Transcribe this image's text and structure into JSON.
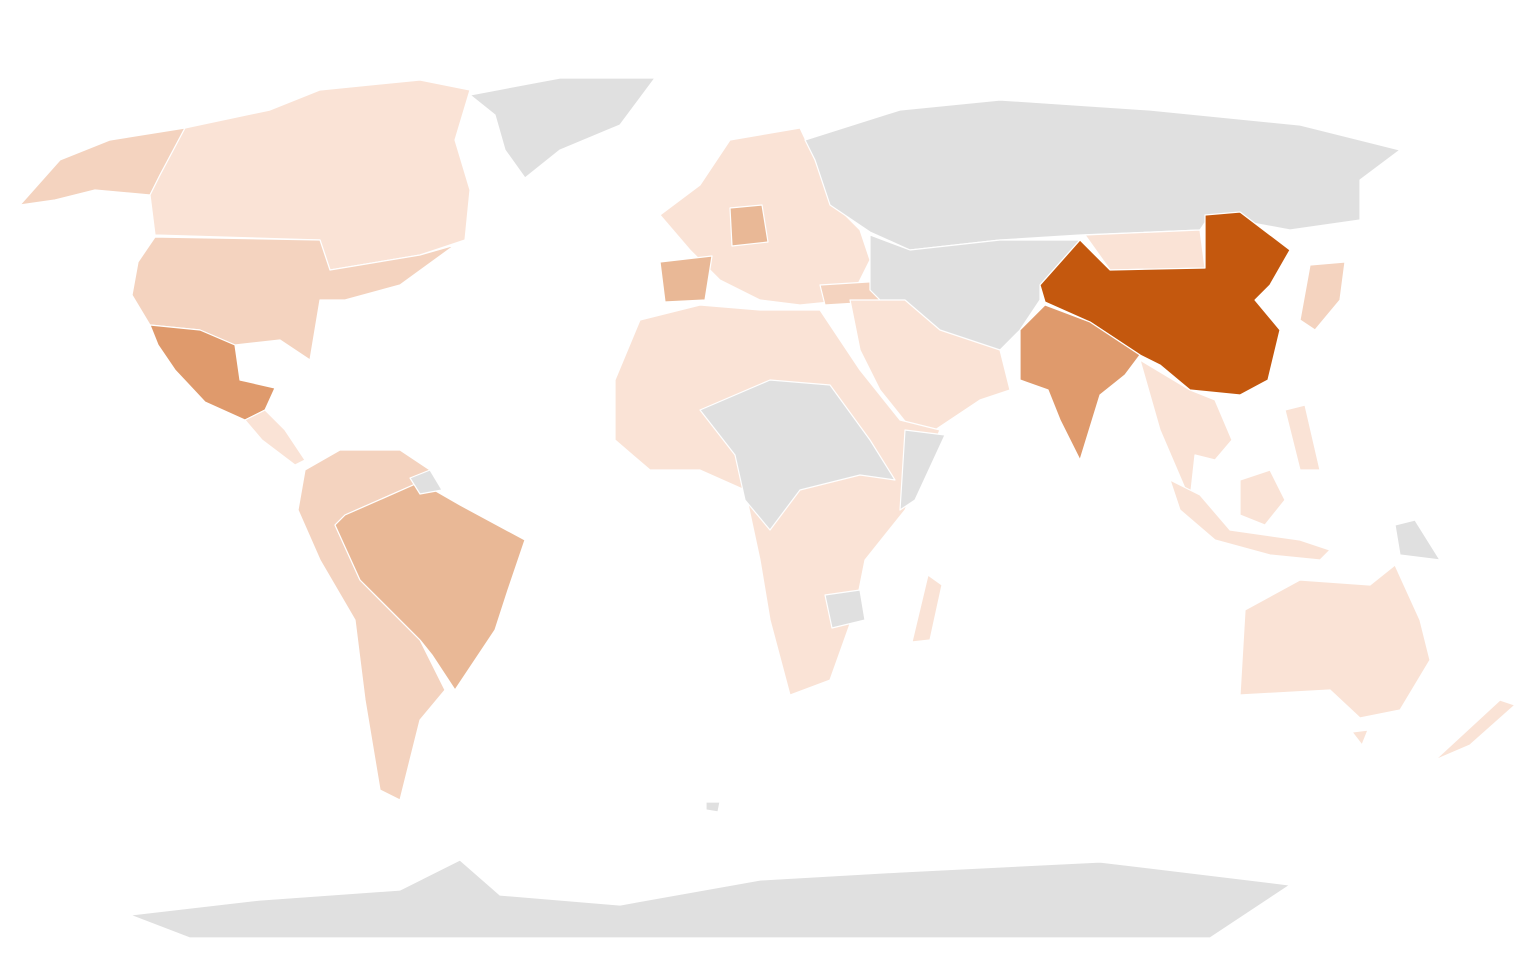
{
  "map": {
    "type": "choropleth",
    "projection": "world",
    "fills": {
      "no-data": "#e0e0e0",
      "level-1": "#fae3d6",
      "level-2": "#f4d3bf",
      "level-3": "#e9b896",
      "level-4": "#df9a6c",
      "level-5": "#c4580e"
    }
  }
}
